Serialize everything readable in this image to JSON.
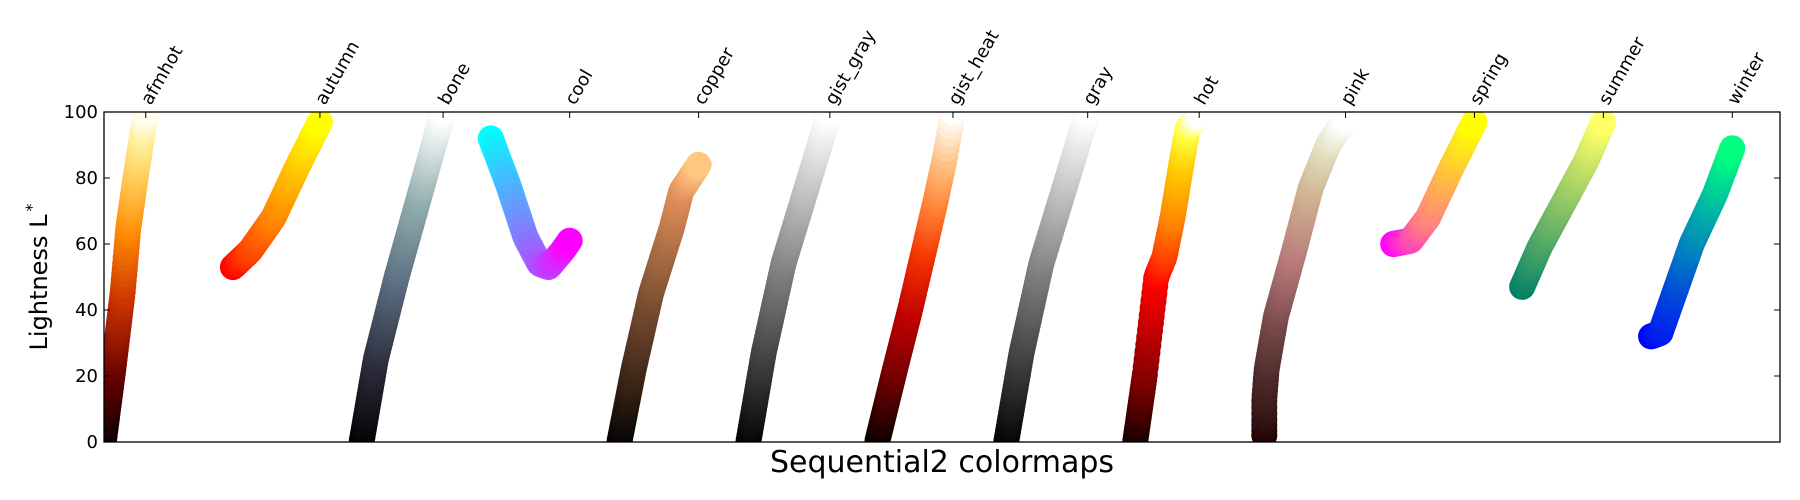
{
  "chart_data": {
    "type": "scatter",
    "title": "",
    "xlabel": "Sequential2 colormaps",
    "ylabel": "Lightness L",
    "ylabel_superscript": "*",
    "ylim": [
      0,
      100
    ],
    "yticks": [
      "0",
      "20",
      "40",
      "60",
      "80",
      "100"
    ],
    "grid": false,
    "legend": "none",
    "series": [
      {
        "name": "afmhot",
        "stops": [
          {
            "t": 0,
            "x": 0.0,
            "l": 0.5,
            "color": "#000000"
          },
          {
            "t": 0.2,
            "x": 0.08,
            "l": 22,
            "color": "#660000"
          },
          {
            "t": 0.4,
            "x": 0.16,
            "l": 45,
            "color": "#cc3300"
          },
          {
            "t": 0.55,
            "x": 0.21,
            "l": 65,
            "color": "#ff8800"
          },
          {
            "t": 0.75,
            "x": 0.28,
            "l": 82,
            "color": "#ffcc55"
          },
          {
            "t": 0.9,
            "x": 0.33,
            "l": 93,
            "color": "#ffee99"
          },
          {
            "t": 1,
            "x": 0.36,
            "l": 100,
            "color": "#ffffee"
          }
        ]
      },
      {
        "name": "autumn",
        "stops": [
          {
            "t": 0,
            "x": 0.0,
            "l": 53,
            "color": "#ff0000"
          },
          {
            "t": 0.25,
            "x": 0.15,
            "l": 58,
            "color": "#ff4000"
          },
          {
            "t": 0.5,
            "x": 0.35,
            "l": 68,
            "color": "#ff8000"
          },
          {
            "t": 0.75,
            "x": 0.55,
            "l": 83,
            "color": "#ffbf00"
          },
          {
            "t": 1,
            "x": 0.75,
            "l": 97,
            "color": "#ffff00"
          }
        ]
      },
      {
        "name": "bone",
        "stops": [
          {
            "t": 0,
            "x": 0.0,
            "l": 0.5,
            "color": "#000000"
          },
          {
            "t": 0.25,
            "x": 0.12,
            "l": 25,
            "color": "#2b2b3b"
          },
          {
            "t": 0.5,
            "x": 0.3,
            "l": 50,
            "color": "#596d80"
          },
          {
            "t": 0.75,
            "x": 0.5,
            "l": 75,
            "color": "#92aeae"
          },
          {
            "t": 1,
            "x": 0.7,
            "l": 100,
            "color": "#ffffff"
          }
        ]
      },
      {
        "name": "cool",
        "stops": [
          {
            "t": 0,
            "x": 0.0,
            "l": 92,
            "color": "#00ffff"
          },
          {
            "t": 0.25,
            "x": 0.15,
            "l": 78,
            "color": "#40bfff"
          },
          {
            "t": 0.5,
            "x": 0.3,
            "l": 62,
            "color": "#8080ff"
          },
          {
            "t": 0.65,
            "x": 0.42,
            "l": 54,
            "color": "#a659ff"
          },
          {
            "t": 0.75,
            "x": 0.5,
            "l": 53,
            "color": "#bf40ff"
          },
          {
            "t": 0.9,
            "x": 0.62,
            "l": 58,
            "color": "#e61aff"
          },
          {
            "t": 1,
            "x": 0.68,
            "l": 61,
            "color": "#ff00ff"
          }
        ]
      },
      {
        "name": "copper",
        "stops": [
          {
            "t": 0,
            "x": 0.0,
            "l": 0.5,
            "color": "#000000"
          },
          {
            "t": 0.25,
            "x": 0.12,
            "l": 22,
            "color": "#3e2718"
          },
          {
            "t": 0.5,
            "x": 0.27,
            "l": 45,
            "color": "#7c4f31"
          },
          {
            "t": 0.75,
            "x": 0.45,
            "l": 65,
            "color": "#ba7649"
          },
          {
            "t": 0.88,
            "x": 0.53,
            "l": 76,
            "color": "#e08c58"
          },
          {
            "t": 1,
            "x": 0.68,
            "l": 84,
            "color": "#ffc77f"
          }
        ]
      },
      {
        "name": "gist_gray",
        "stops": [
          {
            "t": 0,
            "x": 0.0,
            "l": 0.5,
            "color": "#000000"
          },
          {
            "t": 0.25,
            "x": 0.13,
            "l": 27,
            "color": "#404040"
          },
          {
            "t": 0.5,
            "x": 0.3,
            "l": 54,
            "color": "#808080"
          },
          {
            "t": 0.75,
            "x": 0.5,
            "l": 77,
            "color": "#bfbfbf"
          },
          {
            "t": 1,
            "x": 0.7,
            "l": 100,
            "color": "#ffffff"
          }
        ]
      },
      {
        "name": "gist_heat",
        "stops": [
          {
            "t": 0,
            "x": 0.0,
            "l": 0.5,
            "color": "#000000"
          },
          {
            "t": 0.3,
            "x": 0.15,
            "l": 22,
            "color": "#730000"
          },
          {
            "t": 0.5,
            "x": 0.28,
            "l": 40,
            "color": "#bf0000"
          },
          {
            "t": 0.65,
            "x": 0.4,
            "l": 58,
            "color": "#f33300"
          },
          {
            "t": 0.8,
            "x": 0.5,
            "l": 73,
            "color": "#ff8033"
          },
          {
            "t": 0.92,
            "x": 0.58,
            "l": 86,
            "color": "#ffbf7f"
          },
          {
            "t": 1,
            "x": 0.65,
            "l": 100,
            "color": "#ffffff"
          }
        ]
      },
      {
        "name": "gray",
        "stops": [
          {
            "t": 0,
            "x": 0.0,
            "l": 0.5,
            "color": "#000000"
          },
          {
            "t": 0.25,
            "x": 0.13,
            "l": 27,
            "color": "#404040"
          },
          {
            "t": 0.5,
            "x": 0.3,
            "l": 54,
            "color": "#808080"
          },
          {
            "t": 0.75,
            "x": 0.5,
            "l": 77,
            "color": "#bfbfbf"
          },
          {
            "t": 1,
            "x": 0.7,
            "l": 100,
            "color": "#ffffff"
          }
        ]
      },
      {
        "name": "hot",
        "stops": [
          {
            "t": 0,
            "x": 0.0,
            "l": 0.5,
            "color": "#0b0000"
          },
          {
            "t": 0.2,
            "x": 0.08,
            "l": 20,
            "color": "#800000"
          },
          {
            "t": 0.37,
            "x": 0.18,
            "l": 50,
            "color": "#ff0000"
          },
          {
            "t": 0.45,
            "x": 0.25,
            "l": 56,
            "color": "#ff3300"
          },
          {
            "t": 0.6,
            "x": 0.32,
            "l": 68,
            "color": "#ff8000"
          },
          {
            "t": 0.8,
            "x": 0.4,
            "l": 85,
            "color": "#ffcc00"
          },
          {
            "t": 0.9,
            "x": 0.45,
            "l": 95,
            "color": "#ffff40"
          },
          {
            "t": 1,
            "x": 0.55,
            "l": 99,
            "color": "#ffffff"
          }
        ]
      },
      {
        "name": "pink",
        "stops": [
          {
            "t": 0,
            "x": 0.0,
            "l": 2,
            "color": "#1e0000"
          },
          {
            "t": 0.04,
            "x": 0.0,
            "l": 7,
            "color": "#2e1010"
          },
          {
            "t": 0.08,
            "x": 0.0,
            "l": 13,
            "color": "#3c1b1b"
          },
          {
            "t": 0.15,
            "x": 0.02,
            "l": 22,
            "color": "#4e2b2b"
          },
          {
            "t": 0.3,
            "x": 0.1,
            "l": 38,
            "color": "#7a4a4a"
          },
          {
            "t": 0.5,
            "x": 0.25,
            "l": 57,
            "color": "#b87a7a"
          },
          {
            "t": 0.7,
            "x": 0.4,
            "l": 77,
            "color": "#cfb38f"
          },
          {
            "t": 0.85,
            "x": 0.55,
            "l": 90,
            "color": "#e2e0bf"
          },
          {
            "t": 1,
            "x": 0.7,
            "l": 98,
            "color": "#ffffff"
          }
        ]
      },
      {
        "name": "spring",
        "stops": [
          {
            "t": 0,
            "x": 0.0,
            "l": 60,
            "color": "#ff00ff"
          },
          {
            "t": 0.25,
            "x": 0.15,
            "l": 61,
            "color": "#ff40bf"
          },
          {
            "t": 0.5,
            "x": 0.3,
            "l": 68,
            "color": "#ff8080"
          },
          {
            "t": 0.75,
            "x": 0.5,
            "l": 83,
            "color": "#ffbf40"
          },
          {
            "t": 1,
            "x": 0.7,
            "l": 97,
            "color": "#ffff00"
          }
        ]
      },
      {
        "name": "summer",
        "stops": [
          {
            "t": 0,
            "x": 0.0,
            "l": 47,
            "color": "#008066"
          },
          {
            "t": 0.25,
            "x": 0.15,
            "l": 59,
            "color": "#409f66"
          },
          {
            "t": 0.5,
            "x": 0.35,
            "l": 72,
            "color": "#80bf66"
          },
          {
            "t": 0.75,
            "x": 0.55,
            "l": 85,
            "color": "#bfdf66"
          },
          {
            "t": 1,
            "x": 0.7,
            "l": 97,
            "color": "#ffff66"
          }
        ]
      },
      {
        "name": "winter",
        "stops": [
          {
            "t": 0,
            "x": 0.0,
            "l": 32,
            "color": "#0000ff"
          },
          {
            "t": 0.1,
            "x": 0.08,
            "l": 33,
            "color": "#001af2"
          },
          {
            "t": 0.25,
            "x": 0.2,
            "l": 45,
            "color": "#0040df"
          },
          {
            "t": 0.5,
            "x": 0.35,
            "l": 60,
            "color": "#0080bf"
          },
          {
            "t": 0.75,
            "x": 0.55,
            "l": 75,
            "color": "#00bf9f"
          },
          {
            "t": 1,
            "x": 0.7,
            "l": 89,
            "color": "#00ff80"
          }
        ]
      }
    ]
  }
}
